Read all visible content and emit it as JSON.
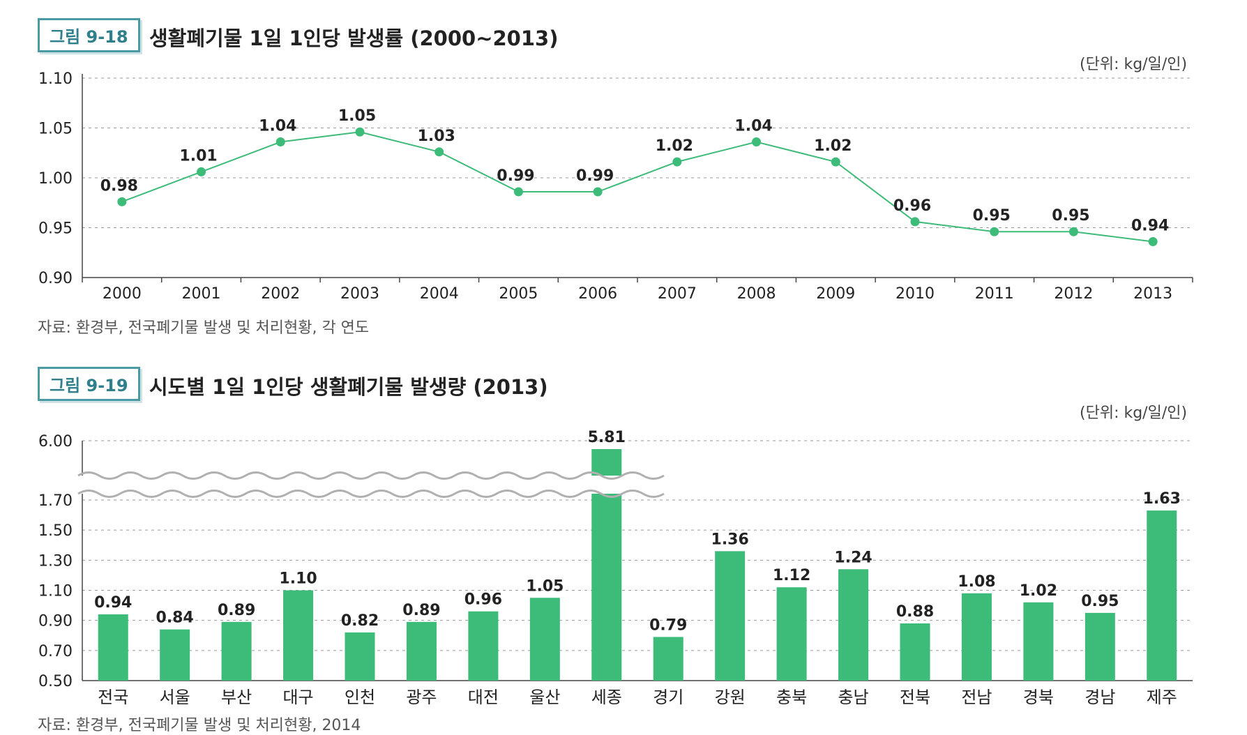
{
  "fig1": {
    "tag": "그림 9-18",
    "title": "생활폐기물 1일 1인당 발생률 (2000~2013)",
    "unit": "(단위: kg/일/인)",
    "source": "자료: 환경부, 전국폐기물 발생 및 처리현황, 각 연도"
  },
  "fig2": {
    "tag": "그림 9-19",
    "title": "시도별 1일 1인당 생활폐기물 발생량 (2013)",
    "unit": "(단위: kg/일/인)",
    "source": "자료: 환경부, 전국폐기물 발생 및 처리현황, 2014"
  },
  "colors": {
    "accent": "#3dbb78",
    "line": "#3dbb78"
  },
  "chart_data": [
    {
      "type": "line",
      "title": "생활폐기물 1일 1인당 발생률 (2000~2013)",
      "x": [
        "2000",
        "2001",
        "2002",
        "2003",
        "2004",
        "2005",
        "2006",
        "2007",
        "2008",
        "2009",
        "2010",
        "2011",
        "2012",
        "2013"
      ],
      "values": [
        0.976,
        1.006,
        1.036,
        1.046,
        1.026,
        0.986,
        0.986,
        1.016,
        1.036,
        1.016,
        0.956,
        0.946,
        0.946,
        0.936
      ],
      "labels": [
        "0.98",
        "1.01",
        "1.04",
        "1.05",
        "1.03",
        "0.99",
        "0.99",
        "1.02",
        "1.04",
        "1.02",
        "0.96",
        "0.95",
        "0.95",
        "0.94"
      ],
      "yticks": [
        "0.90",
        "0.95",
        "1.00",
        "1.05",
        "1.10"
      ],
      "ylim": [
        0.9,
        1.1
      ],
      "grid": true
    },
    {
      "type": "bar",
      "title": "시도별 1일 1인당 생활폐기물 발생량 (2013)",
      "categories": [
        "전국",
        "서울",
        "부산",
        "대구",
        "인천",
        "광주",
        "대전",
        "울산",
        "세종",
        "경기",
        "강원",
        "충북",
        "충남",
        "전북",
        "전남",
        "경북",
        "경남",
        "제주"
      ],
      "values": [
        0.94,
        0.84,
        0.89,
        1.1,
        0.82,
        0.89,
        0.96,
        1.05,
        5.81,
        0.79,
        1.36,
        1.12,
        1.24,
        0.88,
        1.08,
        1.02,
        0.95,
        1.63
      ],
      "labels": [
        "0.94",
        "0.84",
        "0.89",
        "1.10",
        "0.82",
        "0.89",
        "0.96",
        "1.05",
        "5.81",
        "0.79",
        "1.36",
        "1.12",
        "1.24",
        "0.88",
        "1.08",
        "1.02",
        "0.95",
        "1.63"
      ],
      "yticks": [
        "0.50",
        "0.70",
        "0.90",
        "1.10",
        "1.30",
        "1.50",
        "1.70",
        "6.00"
      ],
      "ylim": [
        0.5,
        1.7
      ],
      "axis_break": [
        1.7,
        6.0
      ],
      "grid": true
    }
  ]
}
